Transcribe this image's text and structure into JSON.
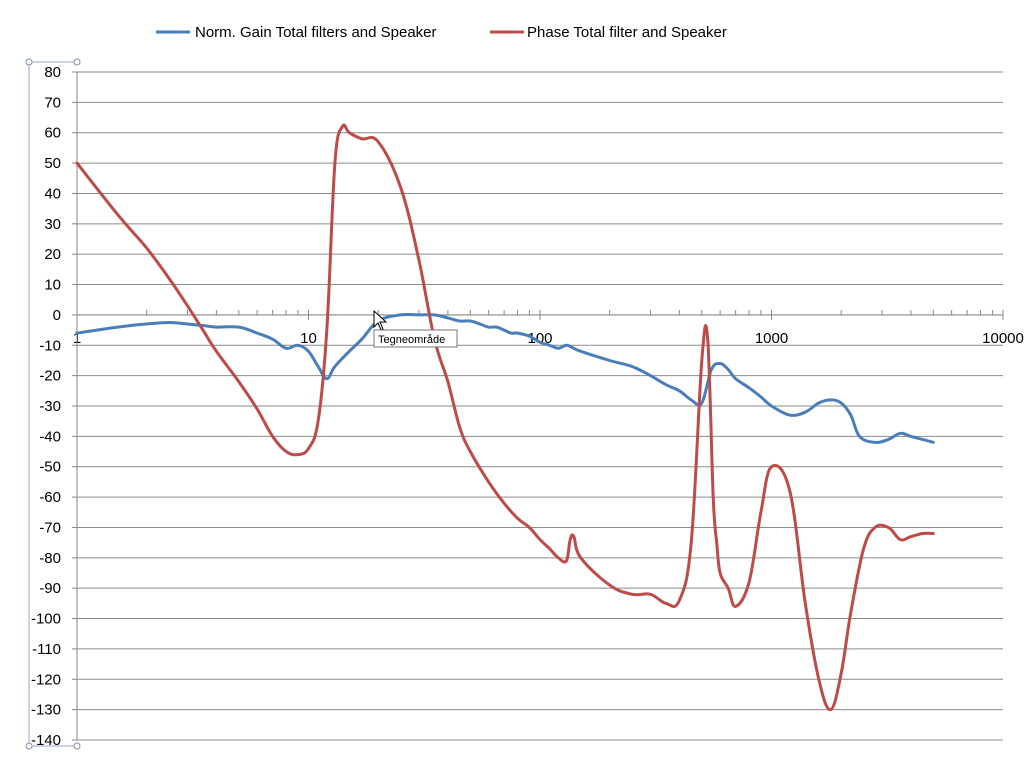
{
  "chart_data": {
    "type": "line",
    "title": "",
    "xlabel": "",
    "ylabel": "",
    "x_scale": "log",
    "xlim": [
      1,
      10000
    ],
    "ylim": [
      -140,
      80
    ],
    "y_ticks": [
      "80",
      "70",
      "60",
      "50",
      "40",
      "30",
      "20",
      "10",
      "0",
      "-10",
      "-20",
      "-30",
      "-40",
      "-50",
      "-60",
      "-70",
      "-80",
      "-90",
      "-100",
      "-110",
      "-120",
      "-130",
      "-140"
    ],
    "x_tick_labels": [
      "1",
      "10",
      "100",
      "1000",
      "10000"
    ],
    "grid": "horizontal",
    "legend_position": "top",
    "series": [
      {
        "name": "Norm. Gain Total filters and Speaker",
        "color": "#4a7ebb",
        "x": [
          1,
          1.5,
          2,
          2.5,
          3,
          3.5,
          4,
          5,
          6,
          7,
          8,
          9,
          10,
          11,
          12,
          13,
          15,
          17,
          20,
          25,
          30,
          35,
          40,
          45,
          50,
          55,
          60,
          65,
          70,
          75,
          80,
          90,
          100,
          110,
          120,
          130,
          140,
          150,
          200,
          250,
          300,
          350,
          400,
          450,
          500,
          550,
          600,
          650,
          700,
          800,
          900,
          1000,
          1200,
          1400,
          1600,
          1800,
          2000,
          2200,
          2400,
          2800,
          3200,
          3600,
          4000,
          4500,
          5000
        ],
        "y": [
          -6,
          -4,
          -3,
          -2.5,
          -3,
          -3.5,
          -4,
          -4,
          -6,
          -8,
          -11,
          -10,
          -12,
          -17,
          -21,
          -17,
          -12,
          -8,
          -2,
          0,
          0,
          0,
          -1,
          -2,
          -2,
          -3,
          -4,
          -4,
          -5,
          -6,
          -6,
          -7,
          -9,
          -10,
          -11,
          -10,
          -11,
          -12,
          -15,
          -17,
          -20,
          -23,
          -25,
          -28,
          -29,
          -18,
          -16,
          -18,
          -21,
          -24,
          -27,
          -30,
          -33,
          -32,
          -29,
          -28,
          -29,
          -33,
          -40,
          -42,
          -41,
          -39,
          -40,
          -41,
          -42
        ]
      },
      {
        "name": "Phase Total filter and Speaker",
        "color": "#be4b48",
        "x": [
          1,
          1.5,
          2,
          2.5,
          3,
          3.5,
          4,
          5,
          6,
          7,
          8,
          9,
          10,
          11,
          12,
          13,
          14,
          15,
          17,
          20,
          25,
          30,
          35,
          40,
          45,
          50,
          60,
          70,
          80,
          90,
          100,
          110,
          120,
          130,
          135,
          140,
          150,
          200,
          250,
          300,
          350,
          400,
          450,
          500,
          530,
          560,
          580,
          600,
          650,
          700,
          800,
          900,
          1000,
          1200,
          1400,
          1600,
          1800,
          2000,
          2200,
          2500,
          2800,
          3200,
          3600,
          4000,
          4500,
          5000
        ],
        "y": [
          50,
          33,
          22,
          12,
          3,
          -5,
          -12,
          -22,
          -31,
          -40,
          -45,
          -46,
          -44,
          -35,
          -5,
          50,
          62,
          60,
          58,
          57,
          42,
          18,
          -8,
          -22,
          -37,
          -45,
          -55,
          -62,
          -67,
          -70,
          -74,
          -77,
          -80,
          -81,
          -74,
          -73,
          -80,
          -89,
          -92,
          -92,
          -95,
          -94,
          -75,
          -15,
          -8,
          -60,
          -75,
          -85,
          -90,
          -96,
          -88,
          -65,
          -50,
          -58,
          -95,
          -120,
          -130,
          -118,
          -98,
          -77,
          -70,
          -70,
          -74,
          -73,
          -72,
          -72
        ]
      }
    ]
  },
  "tooltip": {
    "text": "Tegneområde"
  }
}
